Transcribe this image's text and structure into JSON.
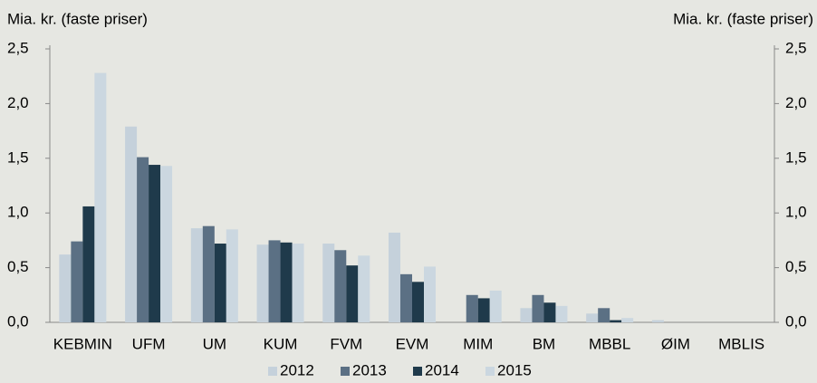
{
  "chart_data": {
    "type": "bar",
    "y_label": "Mia. kr. (faste priser)",
    "y2_label": "Mia. kr. (faste priser)",
    "categories": [
      "KEBMIN",
      "UFM",
      "UM",
      "KUM",
      "FVM",
      "EVM",
      "MIM",
      "BM",
      "MBBL",
      "ØIM",
      "MBLIS"
    ],
    "series": [
      {
        "name": "2012",
        "color": "#c5d1db",
        "values": [
          0.62,
          1.79,
          0.86,
          0.71,
          0.72,
          0.82,
          null,
          0.13,
          0.08,
          0.02,
          0
        ]
      },
      {
        "name": "2013",
        "color": "#5b7084",
        "values": [
          0.74,
          1.51,
          0.88,
          0.75,
          0.66,
          0.44,
          0.25,
          0.25,
          0.13,
          0,
          0
        ]
      },
      {
        "name": "2014",
        "color": "#1f3a4b",
        "values": [
          1.06,
          1.44,
          0.72,
          0.73,
          0.52,
          0.37,
          0.22,
          0.18,
          0.02,
          0,
          0
        ]
      },
      {
        "name": "2015",
        "color": "#cbd7e0",
        "values": [
          2.28,
          1.43,
          0.85,
          0.72,
          0.61,
          0.51,
          0.29,
          0.15,
          0.04,
          0,
          0
        ]
      }
    ],
    "ylim": [
      0,
      2.5
    ],
    "yticks": [
      {
        "value": 0,
        "label": "0,0"
      },
      {
        "value": 0.5,
        "label": "0,5"
      },
      {
        "value": 1,
        "label": "1,0"
      },
      {
        "value": 1.5,
        "label": "1,5"
      },
      {
        "value": 2,
        "label": "2,0"
      },
      {
        "value": 2.5,
        "label": "2,5"
      }
    ],
    "y2lim": [
      0,
      2.5
    ],
    "y2ticks": [
      {
        "value": 0,
        "label": "0,0"
      },
      {
        "value": 0.5,
        "label": "0,5"
      },
      {
        "value": 1,
        "label": "1,0"
      },
      {
        "value": 1.5,
        "label": "1,5"
      },
      {
        "value": 2,
        "label": "2,0"
      },
      {
        "value": 2.5,
        "label": "2,5"
      }
    ],
    "grid": false,
    "legend": "bottom"
  }
}
